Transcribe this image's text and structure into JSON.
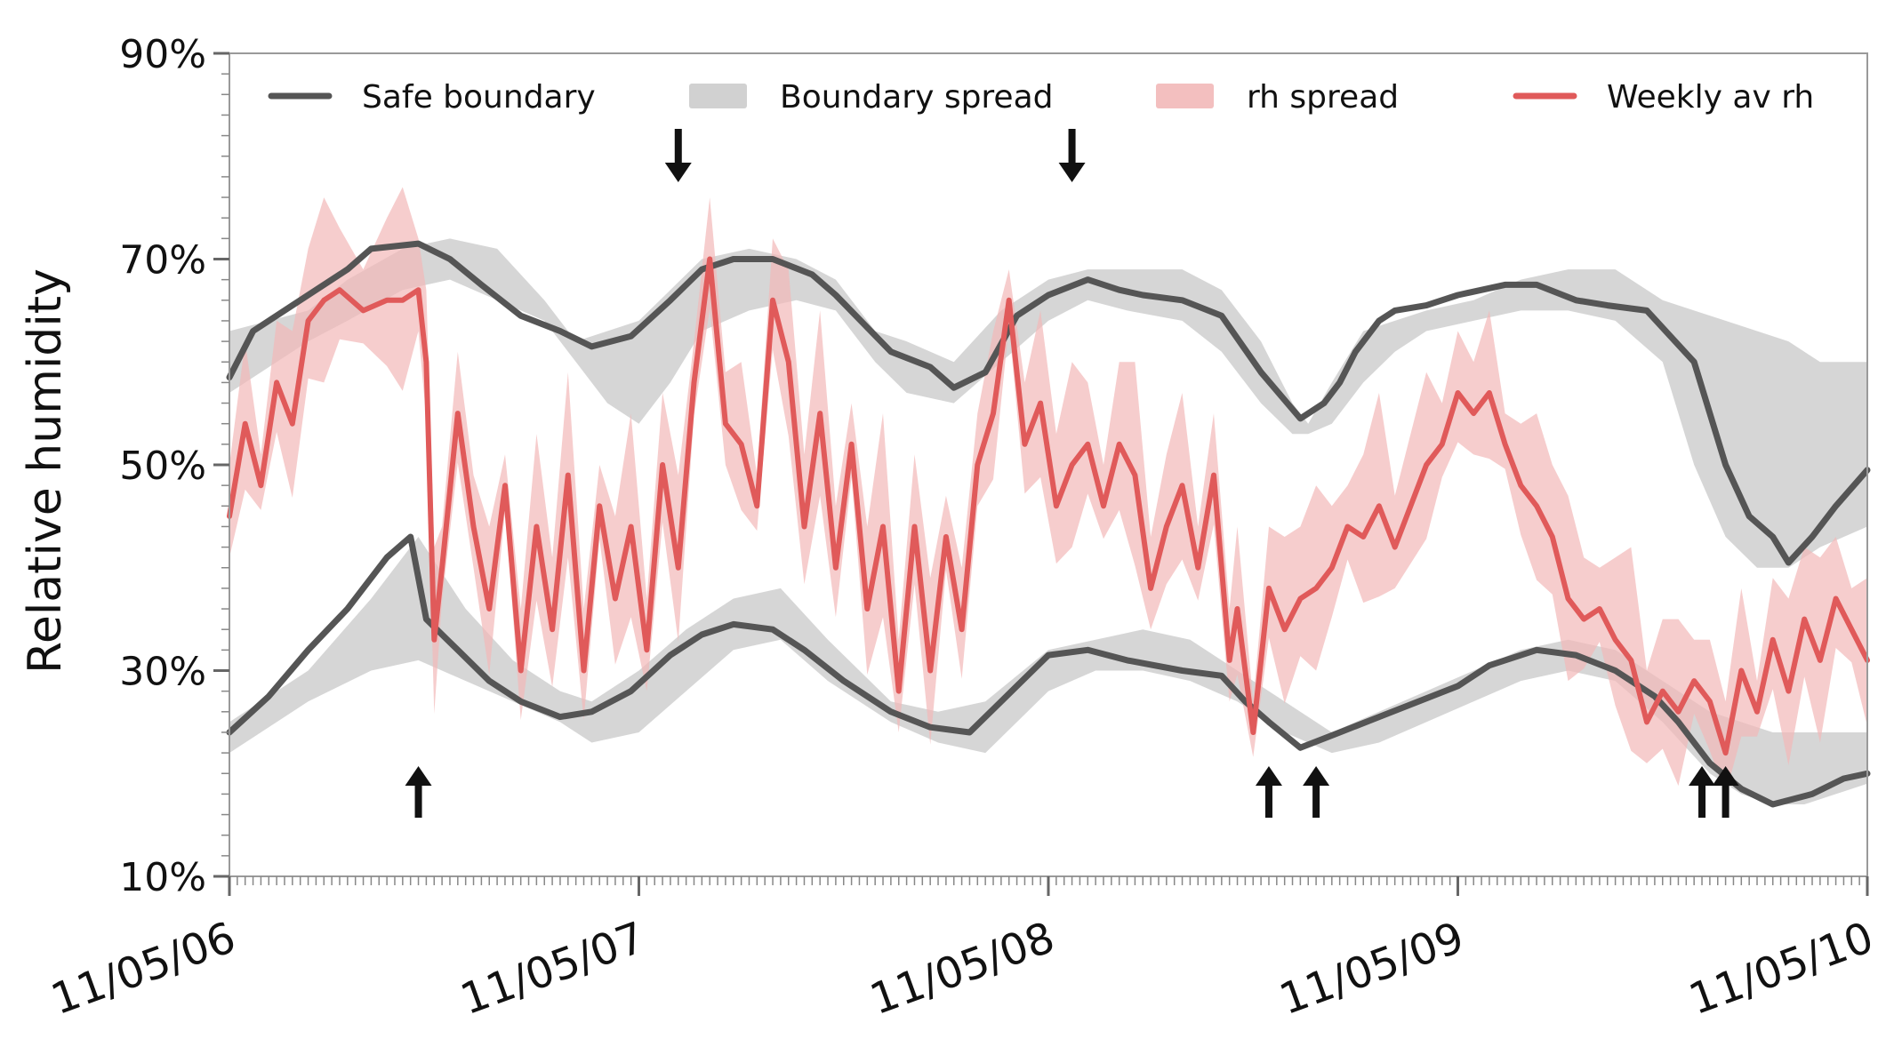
{
  "chart_data": {
    "type": "line",
    "title": "",
    "xlabel": "",
    "ylabel": "Relative humidity",
    "ylim": [
      10,
      90
    ],
    "y_ticks": [
      "10%",
      "30%",
      "50%",
      "70%",
      "90%"
    ],
    "y_tick_values": [
      10,
      30,
      50,
      70,
      90
    ],
    "x_tick_labels": [
      "11/05/06",
      "11/05/07",
      "11/05/08",
      "11/05/09",
      "11/05/10"
    ],
    "x_range_weeks": [
      0,
      208
    ],
    "grid": false,
    "legend_position": "top",
    "legend": [
      {
        "name": "Safe boundary",
        "kind": "line",
        "color": "#555555"
      },
      {
        "name": "Boundary spread",
        "kind": "band",
        "color": "#cccccc"
      },
      {
        "name": "rh spread",
        "kind": "band",
        "color": "#f2b8b8"
      },
      {
        "name": "Weekly av rh",
        "kind": "line",
        "color": "#e05a5a"
      }
    ],
    "series": [
      {
        "name": "Safe boundary (upper)",
        "x_weeks": [
          0,
          3,
          8,
          15,
          18,
          24,
          28,
          32,
          37,
          42,
          46,
          51,
          56,
          60,
          64,
          69,
          74,
          77,
          84,
          89,
          92,
          96,
          100,
          104,
          109,
          113,
          116,
          121,
          126,
          131,
          136,
          139,
          141,
          143,
          146,
          148,
          152,
          156,
          162,
          166,
          171,
          175,
          180,
          186,
          188,
          190,
          193,
          196,
          198,
          201,
          204,
          208
        ],
        "values": [
          58.5,
          63,
          65.5,
          69,
          71,
          71.5,
          70,
          67.5,
          64.5,
          63,
          61.5,
          62.5,
          66,
          69,
          70,
          70,
          68.5,
          66.5,
          61,
          59.5,
          57.5,
          59,
          64.5,
          66.5,
          68,
          67,
          66.5,
          66,
          64.5,
          59,
          54.5,
          56,
          58,
          61,
          64,
          65,
          65.5,
          66.5,
          67.5,
          67.5,
          66,
          65.5,
          65,
          60,
          55,
          50,
          45,
          43,
          40.5,
          43,
          46,
          49.5
        ]
      },
      {
        "name": "Safe boundary (lower)",
        "x_weeks": [
          0,
          5,
          10,
          15,
          20,
          23,
          25,
          29,
          33,
          37,
          42,
          46,
          51,
          56,
          60,
          64,
          69,
          73,
          78,
          84,
          89,
          94,
          98,
          104,
          109,
          114,
          121,
          126,
          129,
          132,
          136,
          141,
          146,
          151,
          156,
          160,
          166,
          171,
          176,
          181,
          184,
          188,
          192,
          196,
          201,
          205,
          208
        ],
        "values": [
          24,
          27.5,
          32,
          36,
          41,
          43,
          35,
          32,
          29,
          27,
          25.5,
          26,
          28,
          31.5,
          33.5,
          34.5,
          34,
          32,
          29,
          26,
          24.5,
          24,
          27,
          31.5,
          32,
          31,
          30,
          29.5,
          27,
          25,
          22.5,
          24,
          25.5,
          27,
          28.5,
          30.5,
          32,
          31.5,
          30,
          27.5,
          25,
          21,
          18.5,
          17,
          18,
          19.5,
          20
        ]
      },
      {
        "name": "Weekly av rh",
        "x_weeks": [
          0,
          2,
          4,
          6,
          8,
          10,
          12,
          14,
          17,
          20,
          22,
          24,
          25,
          26,
          27,
          29,
          31,
          33,
          35,
          37,
          39,
          41,
          43,
          45,
          47,
          49,
          51,
          53,
          55,
          57,
          59,
          61,
          63,
          65,
          67,
          69,
          71,
          73,
          75,
          77,
          79,
          81,
          83,
          85,
          87,
          89,
          91,
          93,
          95,
          97,
          99,
          101,
          103,
          105,
          107,
          109,
          111,
          113,
          115,
          117,
          119,
          121,
          123,
          125,
          127,
          128,
          130,
          132,
          134,
          136,
          138,
          140,
          142,
          144,
          146,
          148,
          150,
          152,
          154,
          156,
          158,
          160,
          162,
          164,
          166,
          168,
          170,
          172,
          174,
          176,
          178,
          180,
          182,
          184,
          186,
          188,
          190,
          192,
          194,
          196,
          198,
          200,
          202,
          204,
          206,
          208
        ],
        "values": [
          45,
          54,
          48,
          58,
          54,
          64,
          66,
          67,
          65,
          66,
          66,
          67,
          60,
          33,
          40,
          55,
          44,
          36,
          48,
          30,
          44,
          34,
          49,
          30,
          46,
          37,
          44,
          32,
          50,
          40,
          58,
          70,
          54,
          52,
          46,
          66,
          60,
          44,
          55,
          40,
          52,
          36,
          44,
          28,
          44,
          30,
          43,
          34,
          50,
          55,
          66,
          52,
          56,
          46,
          50,
          52,
          46,
          52,
          49,
          38,
          44,
          48,
          40,
          49,
          31,
          36,
          24,
          38,
          34,
          37,
          38,
          40,
          44,
          43,
          46,
          42,
          46,
          50,
          52,
          57,
          55,
          57,
          52,
          48,
          46,
          43,
          37,
          35,
          36,
          33,
          31,
          25,
          28,
          26,
          29,
          27,
          22,
          30,
          26,
          33,
          28,
          35,
          31,
          37,
          34,
          31
        ]
      }
    ],
    "bands": [
      {
        "name": "Boundary spread (upper)",
        "x_weeks": [
          0,
          10,
          15,
          22,
          28,
          34,
          40,
          44,
          48,
          52,
          56,
          60,
          66,
          72,
          77,
          82,
          86,
          92,
          98,
          104,
          109,
          114,
          121,
          126,
          131,
          135,
          137,
          140,
          144,
          148,
          152,
          158,
          164,
          170,
          176,
          182,
          186,
          190,
          194,
          198,
          202,
          208
        ],
        "upper": [
          63,
          65,
          68,
          71,
          72,
          71,
          66,
          62,
          63,
          64,
          67,
          70,
          71,
          70,
          68,
          63,
          62,
          60,
          65,
          68,
          69,
          69,
          69,
          67,
          62,
          56,
          54,
          58,
          63,
          64,
          65,
          66,
          68,
          69,
          69,
          66,
          65,
          64,
          63,
          62,
          60,
          60
        ],
        "lower": [
          57,
          62,
          64,
          67,
          68,
          66,
          64,
          60,
          56,
          54,
          58,
          63,
          65,
          66,
          65,
          60,
          57,
          56,
          60,
          64,
          66,
          65,
          64,
          61,
          56,
          53,
          53,
          54,
          58,
          61,
          63,
          64,
          65,
          65,
          64,
          60,
          50,
          43,
          40,
          40,
          42,
          44
        ]
      },
      {
        "name": "Boundary spread (lower)",
        "x_weeks": [
          0,
          10,
          18,
          24,
          30,
          36,
          42,
          46,
          52,
          58,
          64,
          70,
          76,
          84,
          90,
          96,
          104,
          110,
          116,
          122,
          128,
          134,
          140,
          146,
          152,
          158,
          164,
          170,
          176,
          182,
          188,
          192,
          196,
          200,
          204,
          208
        ],
        "upper": [
          25,
          30,
          37,
          43,
          36,
          31,
          28,
          27,
          30,
          34,
          37,
          38,
          33,
          27,
          26,
          27,
          32,
          33,
          34,
          33,
          30,
          27,
          24,
          26,
          28,
          30,
          32,
          33,
          32,
          29,
          26,
          25,
          24,
          24,
          24,
          24
        ],
        "lower": [
          22,
          27,
          30,
          31,
          29,
          27,
          25,
          23,
          24,
          28,
          32,
          33,
          29,
          25,
          23,
          22,
          28,
          30,
          30,
          29,
          27,
          24,
          22,
          23,
          25,
          27,
          29,
          30,
          29,
          25,
          20,
          18,
          17,
          17,
          18,
          19
        ]
      }
    ],
    "annotations": [
      {
        "label": "down-arrow",
        "x_week": 57,
        "direction": "down"
      },
      {
        "label": "down-arrow",
        "x_week": 107,
        "direction": "down"
      },
      {
        "label": "up-arrow",
        "x_week": 24,
        "direction": "up"
      },
      {
        "label": "up-arrow",
        "x_week": 132,
        "direction": "up"
      },
      {
        "label": "up-arrow",
        "x_week": 138,
        "direction": "up"
      },
      {
        "label": "up-arrow",
        "x_week": 187,
        "direction": "up"
      },
      {
        "label": "up-arrow",
        "x_week": 190,
        "direction": "up"
      }
    ]
  }
}
